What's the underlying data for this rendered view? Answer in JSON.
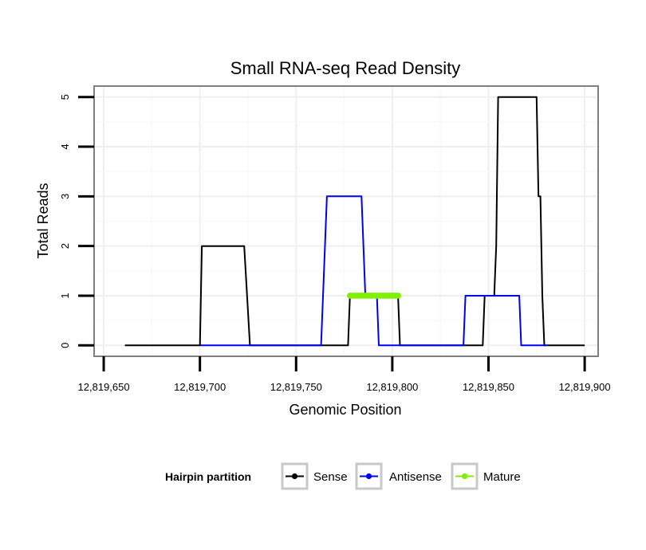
{
  "chart_data": {
    "type": "line",
    "title": "Small RNA-seq Read Density",
    "xlabel": "Genomic Position",
    "ylabel": "Total Reads",
    "xlim": [
      12819645,
      12819907
    ],
    "ylim": [
      -0.22,
      5.22
    ],
    "x_ticks": [
      12819650,
      12819700,
      12819750,
      12819800,
      12819850,
      12819900
    ],
    "x_tick_labels": [
      "12,819,650",
      "12,819,700",
      "12,819,750",
      "12,819,800",
      "12,819,850",
      "12,819,900"
    ],
    "y_ticks": [
      0,
      1,
      2,
      3,
      4,
      5
    ],
    "y_tick_labels": [
      "0",
      "1",
      "2",
      "3",
      "4",
      "5"
    ],
    "grid": true,
    "legend": {
      "title": "Hairpin partition",
      "placement": "bottom",
      "entries": [
        "Sense",
        "Antisense",
        "Mature"
      ]
    },
    "series": [
      {
        "name": "Sense",
        "color": "#000000",
        "x": [
          12819661,
          12819700,
          12819701,
          12819723,
          12819726,
          12819777,
          12819778,
          12819803,
          12819804,
          12819847,
          12819848,
          12819853,
          12819854,
          12819855,
          12819875,
          12819876,
          12819877,
          12819878,
          12819879,
          12819900
        ],
        "y": [
          0,
          0,
          2,
          2,
          0,
          0,
          1,
          1,
          0,
          0,
          1,
          1,
          2,
          5,
          5,
          3,
          3,
          1,
          0,
          0
        ]
      },
      {
        "name": "Antisense",
        "color": "#0000ee",
        "x": [
          12819700,
          12819763,
          12819766,
          12819784,
          12819786,
          12819792,
          12819793,
          12819837,
          12819838,
          12819866,
          12819867,
          12819880
        ],
        "y": [
          0,
          0,
          3,
          3,
          1,
          1,
          0,
          0,
          1,
          1,
          0,
          0
        ]
      },
      {
        "name": "Mature",
        "color": "#7ef000",
        "x": [
          12819778,
          12819779,
          12819780,
          12819781,
          12819782,
          12819783,
          12819784,
          12819785,
          12819786,
          12819787,
          12819788,
          12819789,
          12819790,
          12819791,
          12819792,
          12819793,
          12819794,
          12819795,
          12819796,
          12819797,
          12819798,
          12819799,
          12819800,
          12819801,
          12819802,
          12819803
        ],
        "y": [
          1,
          1,
          1,
          1,
          1,
          1,
          1,
          1,
          1,
          1,
          1,
          1,
          1,
          1,
          1,
          1,
          1,
          1,
          1,
          1,
          1,
          1,
          1,
          1,
          1,
          1
        ]
      }
    ]
  }
}
